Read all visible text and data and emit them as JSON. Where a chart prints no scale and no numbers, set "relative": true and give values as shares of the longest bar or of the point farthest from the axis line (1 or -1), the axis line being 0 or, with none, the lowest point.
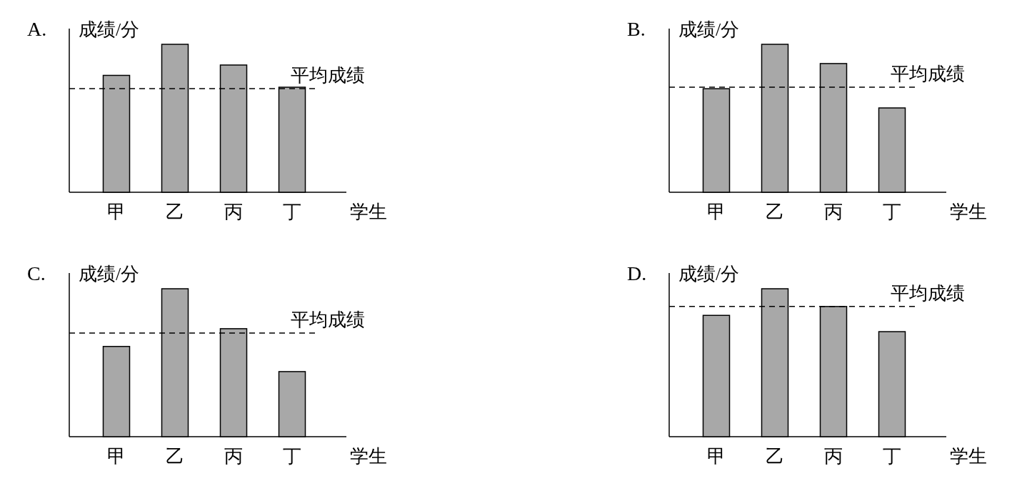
{
  "chart_data": [
    {
      "type": "bar",
      "title": "A.",
      "ylabel": "成绩/分",
      "xlabel": "学生",
      "categories": [
        "甲",
        "乙",
        "丙",
        "丁"
      ],
      "values": [
        0.79,
        1,
        0.86,
        0.71
      ],
      "color": "#a8a8a8",
      "relative": true,
      "ref_lines": [
        {
          "axis": "y",
          "value": 0.7,
          "label": "平均成绩",
          "line_style": "dashed",
          "color": "#000000"
        }
      ]
    },
    {
      "type": "bar",
      "title": "B.",
      "ylabel": "成绩/分",
      "xlabel": "学生",
      "categories": [
        "甲",
        "乙",
        "丙",
        "丁"
      ],
      "values": [
        0.7,
        1,
        0.87,
        0.57
      ],
      "color": "#a8a8a8",
      "relative": true,
      "ref_lines": [
        {
          "axis": "y",
          "value": 0.71,
          "label": "平均成绩",
          "line_style": "dashed",
          "color": "#000000"
        }
      ]
    },
    {
      "type": "bar",
      "title": "C.",
      "ylabel": "成绩/分",
      "xlabel": "学生",
      "categories": [
        "甲",
        "乙",
        "丙",
        "丁"
      ],
      "values": [
        0.61,
        1,
        0.73,
        0.44
      ],
      "color": "#a8a8a8",
      "relative": true,
      "ref_lines": [
        {
          "axis": "y",
          "value": 0.7,
          "label": "平均成绩",
          "line_style": "dashed",
          "color": "#000000"
        }
      ]
    },
    {
      "type": "bar",
      "title": "D.",
      "ylabel": "成绩/分",
      "xlabel": "学生",
      "categories": [
        "甲",
        "乙",
        "丙",
        "丁"
      ],
      "values": [
        0.82,
        1,
        0.88,
        0.71
      ],
      "color": "#a8a8a8",
      "relative": true,
      "ref_lines": [
        {
          "axis": "y",
          "value": 0.88,
          "label": "平均成绩",
          "line_style": "dashed",
          "color": "#000000"
        }
      ]
    }
  ]
}
